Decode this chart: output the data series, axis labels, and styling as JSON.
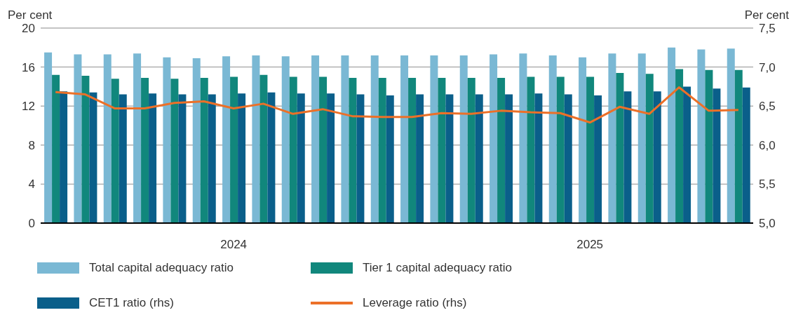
{
  "chart_data": {
    "type": "bar",
    "ylabel": "Per cent",
    "y2label": "Per cent",
    "categories": [
      null,
      null,
      null,
      null,
      null,
      null,
      "2024",
      null,
      null,
      null,
      null,
      null,
      null,
      null,
      null,
      null,
      null,
      null,
      "2025",
      null,
      null,
      null,
      null,
      null
    ],
    "series": [
      {
        "name": "Total capital adequacy ratio",
        "color": "#7ab8d4",
        "values": [
          17.5,
          17.3,
          17.3,
          17.4,
          17.0,
          16.9,
          17.1,
          17.2,
          17.1,
          17.2,
          17.2,
          17.2,
          17.2,
          17.2,
          17.2,
          17.3,
          17.4,
          17.2,
          17.0,
          17.4,
          17.4,
          18.0,
          17.8,
          17.9
        ]
      },
      {
        "name": "Tier 1 capital adequacy ratio",
        "color": "#11877c",
        "values": [
          15.2,
          15.1,
          14.8,
          14.9,
          14.8,
          14.9,
          15.0,
          15.2,
          15.0,
          15.0,
          14.9,
          14.9,
          14.9,
          14.9,
          14.9,
          14.9,
          15.0,
          15.0,
          15.0,
          15.4,
          15.3,
          15.8,
          15.7,
          15.7
        ]
      },
      {
        "name": "CET1 ratio (rhs)",
        "color": "#0a5f8a",
        "values": [
          13.5,
          13.4,
          13.2,
          13.3,
          13.2,
          13.2,
          13.3,
          13.4,
          13.3,
          13.3,
          13.2,
          13.1,
          13.2,
          13.2,
          13.2,
          13.2,
          13.3,
          13.2,
          13.1,
          13.5,
          13.5,
          14.0,
          13.8,
          13.9
        ]
      },
      {
        "name": "Leverage ratio (rhs)",
        "type": "line",
        "axis": "y2",
        "color": "#ec7028",
        "values": [
          6.68,
          6.65,
          6.47,
          6.47,
          6.54,
          6.56,
          6.47,
          6.53,
          6.4,
          6.46,
          6.37,
          6.36,
          6.36,
          6.41,
          6.4,
          6.44,
          6.42,
          6.41,
          6.29,
          6.49,
          6.4,
          6.74,
          6.44,
          6.45
        ]
      }
    ],
    "ylim": [
      0,
      20
    ],
    "yticks": [
      0,
      4,
      8,
      12,
      16,
      20
    ],
    "y2lim": [
      5,
      7.5
    ],
    "y2ticks": [
      {
        "value": 5,
        "label": "5,0"
      },
      {
        "value": 5.5,
        "label": "5,5"
      },
      {
        "value": 6,
        "label": "6,0"
      },
      {
        "value": 6.5,
        "label": "6,5"
      },
      {
        "value": 7,
        "label": "7,0"
      },
      {
        "value": 7.5,
        "label": "7,5"
      }
    ],
    "grid": "y",
    "legend": "bottom"
  }
}
